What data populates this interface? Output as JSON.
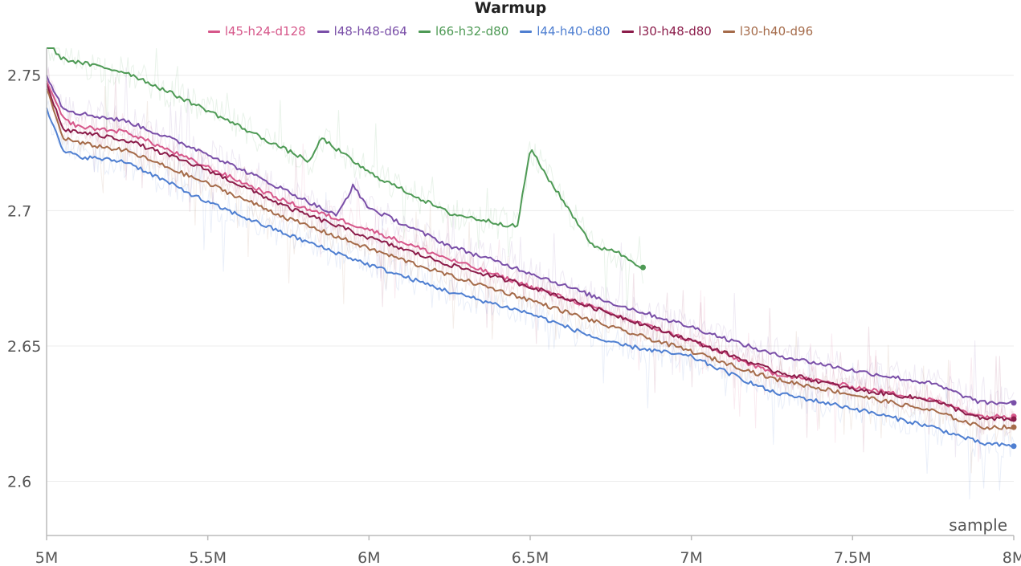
{
  "chart_data": {
    "type": "line",
    "title": "Warmup",
    "xlabel": "sample",
    "ylabel": "",
    "xlim": [
      5000000,
      8000000
    ],
    "ylim": [
      2.58,
      2.76
    ],
    "x_ticks": [
      5000000,
      5500000,
      6000000,
      6500000,
      7000000,
      7500000,
      8000000
    ],
    "x_tick_labels": [
      "5M",
      "5.5M",
      "6M",
      "6.5M",
      "7M",
      "7.5M",
      "8M"
    ],
    "y_ticks": [
      2.6,
      2.65,
      2.7,
      2.75
    ],
    "y_tick_labels": [
      "2.6",
      "2.65",
      "2.7",
      "2.75"
    ],
    "grid": true,
    "legend_position": "top-center",
    "series": [
      {
        "name": "l45-h24-d128",
        "color": "#d6578a",
        "x": [
          5000000,
          5050000,
          5100000,
          5250000,
          5500000,
          5750000,
          6000000,
          6250000,
          6500000,
          6750000,
          7000000,
          7250000,
          7500000,
          7750000,
          7900000,
          8000000
        ],
        "y": [
          2.748,
          2.734,
          2.731,
          2.729,
          2.716,
          2.703,
          2.693,
          2.682,
          2.672,
          2.662,
          2.652,
          2.64,
          2.635,
          2.63,
          2.624,
          2.624
        ]
      },
      {
        "name": "l48-h48-d64",
        "color": "#7a4fa8",
        "x": [
          5000000,
          5050000,
          5100000,
          5250000,
          5500000,
          5750000,
          5900000,
          5950000,
          6000000,
          6250000,
          6500000,
          6750000,
          7000000,
          7250000,
          7500000,
          7750000,
          7900000,
          8000000
        ],
        "y": [
          2.75,
          2.738,
          2.736,
          2.733,
          2.721,
          2.707,
          2.698,
          2.709,
          2.701,
          2.687,
          2.677,
          2.666,
          2.657,
          2.647,
          2.641,
          2.636,
          2.629,
          2.629
        ]
      },
      {
        "name": "l66-h32-d80",
        "color": "#4e9a55",
        "x": [
          5000000,
          5050000,
          5250000,
          5500000,
          5750000,
          5820000,
          5850000,
          6000000,
          6250000,
          6460000,
          6500000,
          6550000,
          6700000,
          6750000,
          6850000
        ],
        "y": [
          2.762,
          2.756,
          2.751,
          2.737,
          2.722,
          2.718,
          2.727,
          2.714,
          2.699,
          2.694,
          2.723,
          2.713,
          2.686,
          2.686,
          2.679
        ]
      },
      {
        "name": "l44-h40-d80",
        "color": "#4f7fd1",
        "x": [
          5000000,
          5050000,
          5100000,
          5250000,
          5500000,
          5750000,
          6000000,
          6250000,
          6500000,
          6750000,
          7000000,
          7250000,
          7500000,
          7750000,
          7900000,
          8000000
        ],
        "y": [
          2.738,
          2.722,
          2.72,
          2.718,
          2.703,
          2.691,
          2.68,
          2.67,
          2.662,
          2.651,
          2.646,
          2.633,
          2.627,
          2.62,
          2.614,
          2.613
        ]
      },
      {
        "name": "l30-h48-d80",
        "color": "#8b1c4a",
        "x": [
          5000000,
          5050000,
          5100000,
          5250000,
          5500000,
          5750000,
          6000000,
          6250000,
          6500000,
          6750000,
          7000000,
          7250000,
          7500000,
          7750000,
          7900000,
          8000000
        ],
        "y": [
          2.747,
          2.73,
          2.729,
          2.726,
          2.715,
          2.701,
          2.69,
          2.68,
          2.672,
          2.662,
          2.652,
          2.641,
          2.634,
          2.63,
          2.623,
          2.623
        ]
      },
      {
        "name": "l30-h40-d96",
        "color": "#a56b4a",
        "x": [
          5000000,
          5050000,
          5100000,
          5250000,
          5500000,
          5750000,
          6000000,
          6250000,
          6500000,
          6750000,
          7000000,
          7250000,
          7500000,
          7750000,
          7900000,
          8000000
        ],
        "y": [
          2.745,
          2.727,
          2.725,
          2.722,
          2.71,
          2.697,
          2.686,
          2.676,
          2.667,
          2.657,
          2.648,
          2.638,
          2.632,
          2.626,
          2.62,
          2.62
        ]
      }
    ]
  }
}
